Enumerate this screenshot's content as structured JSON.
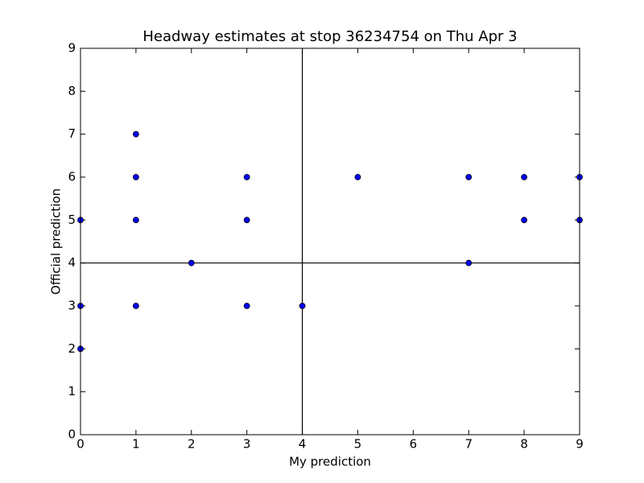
{
  "chart_data": {
    "type": "scatter",
    "title": "Headway estimates at stop 36234754 on Thu Apr 3",
    "xlabel": "My prediction",
    "ylabel": "Official prediction",
    "x": [
      0,
      0,
      0,
      1,
      1,
      1,
      1,
      2,
      3,
      3,
      3,
      4,
      5,
      7,
      7,
      8,
      8,
      9,
      9
    ],
    "y": [
      5,
      3,
      2,
      7,
      6,
      5,
      3,
      4,
      6,
      5,
      3,
      3,
      6,
      6,
      4,
      6,
      5,
      6,
      5
    ],
    "color": "#0000ff",
    "xlim": [
      0,
      9
    ],
    "ylim": [
      0,
      9
    ],
    "xticks": [
      0,
      1,
      2,
      3,
      4,
      5,
      6,
      7,
      8,
      9
    ],
    "yticks": [
      0,
      1,
      2,
      3,
      4,
      5,
      6,
      7,
      8,
      9
    ],
    "vlines": [
      4
    ],
    "hlines": [
      4
    ],
    "grid": false
  }
}
